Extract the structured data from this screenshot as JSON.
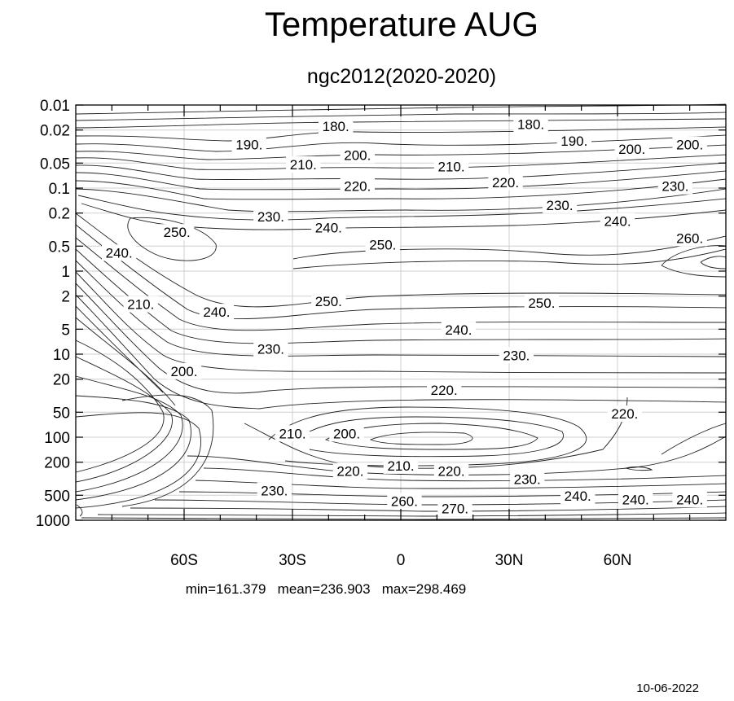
{
  "chart_data": {
    "type": "contour",
    "title": "Temperature AUG",
    "subtitle": "ngc2012(2020-2020)",
    "x_tick_labels": [
      "60S",
      "30S",
      "0",
      "30N",
      "60N"
    ],
    "x_tick_values": [
      -60,
      -30,
      0,
      30,
      60
    ],
    "xlim": [
      -90,
      90
    ],
    "y_tick_labels": [
      "0.01",
      "0.02",
      "0.05",
      "0.1",
      "0.2",
      "0.5",
      "1",
      "2",
      "5",
      "10",
      "20",
      "50",
      "100",
      "200",
      "500",
      "1000"
    ],
    "y_tick_values": [
      0.01,
      0.02,
      0.05,
      0.1,
      0.2,
      0.5,
      1,
      2,
      5,
      10,
      20,
      50,
      100,
      200,
      500,
      1000
    ],
    "y_scale": "log",
    "y_inverted": true,
    "ylim": [
      0.01,
      1000
    ],
    "grid": true,
    "contour_labels": [
      {
        "text": "180.",
        "x": -18,
        "y": 0.018
      },
      {
        "text": "180.",
        "x": 36,
        "y": 0.017
      },
      {
        "text": "190.",
        "x": -42,
        "y": 0.03
      },
      {
        "text": "190.",
        "x": 48,
        "y": 0.027
      },
      {
        "text": "200.",
        "x": -12,
        "y": 0.04
      },
      {
        "text": "200.",
        "x": 64,
        "y": 0.034
      },
      {
        "text": "200.",
        "x": 80,
        "y": 0.03
      },
      {
        "text": "210.",
        "x": -27,
        "y": 0.052
      },
      {
        "text": "210.",
        "x": 14,
        "y": 0.055
      },
      {
        "text": "220.",
        "x": -12,
        "y": 0.095
      },
      {
        "text": "220.",
        "x": 29,
        "y": 0.085
      },
      {
        "text": "230.",
        "x": -36,
        "y": 0.22
      },
      {
        "text": "230.",
        "x": 44,
        "y": 0.16
      },
      {
        "text": "230.",
        "x": 76,
        "y": 0.095
      },
      {
        "text": "240.",
        "x": -20,
        "y": 0.3
      },
      {
        "text": "240.",
        "x": 60,
        "y": 0.25
      },
      {
        "text": "240.",
        "x": -78,
        "y": 0.6
      },
      {
        "text": "250.",
        "x": -62,
        "y": 0.34
      },
      {
        "text": "250.",
        "x": -5,
        "y": 0.48
      },
      {
        "text": "260.",
        "x": 80,
        "y": 0.4
      },
      {
        "text": "210.",
        "x": -72,
        "y": 2.5
      },
      {
        "text": "240.",
        "x": -51,
        "y": 3.1
      },
      {
        "text": "250.",
        "x": -20,
        "y": 2.3
      },
      {
        "text": "250.",
        "x": 39,
        "y": 2.4
      },
      {
        "text": "240.",
        "x": 16,
        "y": 5.1
      },
      {
        "text": "230.",
        "x": -36,
        "y": 8.6
      },
      {
        "text": "230.",
        "x": 32,
        "y": 10.3
      },
      {
        "text": "200.",
        "x": -60,
        "y": 16
      },
      {
        "text": "220.",
        "x": 12,
        "y": 27
      },
      {
        "text": "220.",
        "x": 62,
        "y": 52
      },
      {
        "text": "210.",
        "x": -30,
        "y": 90
      },
      {
        "text": "200.",
        "x": -15,
        "y": 90
      },
      {
        "text": "210.",
        "x": 0,
        "y": 220
      },
      {
        "text": "220.",
        "x": -14,
        "y": 255
      },
      {
        "text": "220.",
        "x": 14,
        "y": 255
      },
      {
        "text": "230.",
        "x": -35,
        "y": 440
      },
      {
        "text": "230.",
        "x": 35,
        "y": 320
      },
      {
        "text": "240.",
        "x": 49,
        "y": 510
      },
      {
        "text": "240.",
        "x": 65,
        "y": 560
      },
      {
        "text": "240.",
        "x": 80,
        "y": 560
      },
      {
        "text": "260.",
        "x": 1,
        "y": 590
      },
      {
        "text": "270.",
        "x": 15,
        "y": 720
      }
    ],
    "stats": "min=161.379   mean=236.903   max=298.469",
    "date": "10-06-2022"
  }
}
